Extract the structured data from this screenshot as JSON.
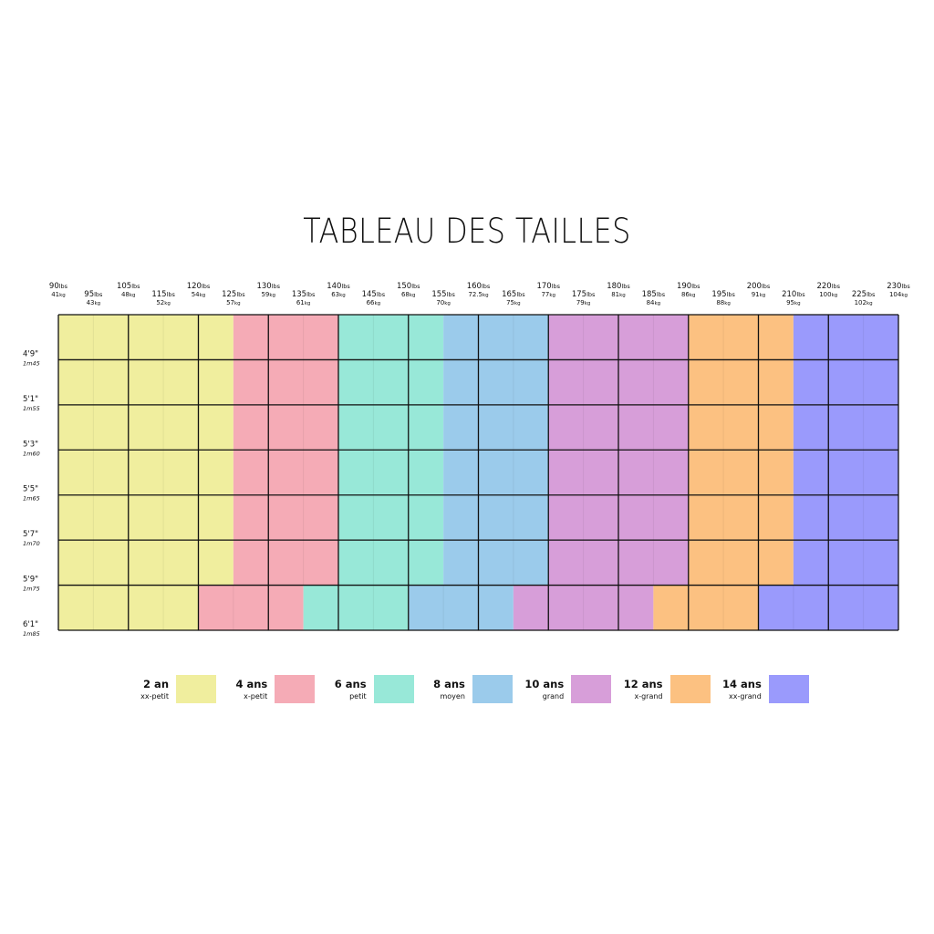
{
  "title": "TABLEAU DES TAILLES",
  "chart_data": {
    "type": "heatmap",
    "title": "TABLEAU DES TAILLES",
    "weights": [
      {
        "lbs": "90",
        "kg": "41"
      },
      {
        "lbs": "95",
        "kg": "43"
      },
      {
        "lbs": "105",
        "kg": "48"
      },
      {
        "lbs": "115",
        "kg": "52"
      },
      {
        "lbs": "120",
        "kg": "54"
      },
      {
        "lbs": "125",
        "kg": "57"
      },
      {
        "lbs": "130",
        "kg": "59"
      },
      {
        "lbs": "135",
        "kg": "61"
      },
      {
        "lbs": "140",
        "kg": "63"
      },
      {
        "lbs": "145",
        "kg": "66"
      },
      {
        "lbs": "150",
        "kg": "68"
      },
      {
        "lbs": "155",
        "kg": "70"
      },
      {
        "lbs": "160",
        "kg": "72.5"
      },
      {
        "lbs": "165",
        "kg": "75"
      },
      {
        "lbs": "170",
        "kg": "77"
      },
      {
        "lbs": "175",
        "kg": "79"
      },
      {
        "lbs": "180",
        "kg": "81"
      },
      {
        "lbs": "185",
        "kg": "84"
      },
      {
        "lbs": "190",
        "kg": "86"
      },
      {
        "lbs": "195",
        "kg": "88"
      },
      {
        "lbs": "200",
        "kg": "91"
      },
      {
        "lbs": "210",
        "kg": "95"
      },
      {
        "lbs": "220",
        "kg": "100"
      },
      {
        "lbs": "225",
        "kg": "102"
      },
      {
        "lbs": "230",
        "kg": "104"
      }
    ],
    "lbs_unit": "lbs",
    "kg_unit": "kg",
    "heights": [
      {
        "ft": "4'9\"",
        "m": "1m45"
      },
      {
        "ft": "5'1\"",
        "m": "1m55"
      },
      {
        "ft": "5'3\"",
        "m": "1m60"
      },
      {
        "ft": "5'5\"",
        "m": "1m65"
      },
      {
        "ft": "5'7\"",
        "m": "1m70"
      },
      {
        "ft": "5'9\"",
        "m": "1m75"
      },
      {
        "ft": "6'1\"",
        "m": "1m85"
      }
    ],
    "grid_columns": 12,
    "grid_rows": 7,
    "bands": [
      {
        "rows": [
          0,
          5
        ],
        "segments": [
          {
            "size": 0,
            "from": 0,
            "to": 5
          },
          {
            "size": 1,
            "from": 5,
            "to": 8
          },
          {
            "size": 2,
            "from": 8,
            "to": 11
          },
          {
            "size": 3,
            "from": 11,
            "to": 14
          },
          {
            "size": 4,
            "from": 14,
            "to": 18
          },
          {
            "size": 5,
            "from": 18,
            "to": 21
          },
          {
            "size": 6,
            "from": 21,
            "to": 24
          }
        ]
      },
      {
        "rows": [
          6,
          6
        ],
        "segments": [
          {
            "size": 0,
            "from": 0,
            "to": 4
          },
          {
            "size": 1,
            "from": 4,
            "to": 7
          },
          {
            "size": 2,
            "from": 7,
            "to": 10
          },
          {
            "size": 3,
            "from": 10,
            "to": 13
          },
          {
            "size": 4,
            "from": 13,
            "to": 17
          },
          {
            "size": 5,
            "from": 17,
            "to": 20
          },
          {
            "size": 6,
            "from": 20,
            "to": 24
          }
        ]
      }
    ],
    "sizes": [
      {
        "age": "2 an",
        "label": "xx-petit",
        "color": "#f0ee9e"
      },
      {
        "age": "4 ans",
        "label": "x-petit",
        "color": "#f5abb6"
      },
      {
        "age": "6 ans",
        "label": "petit",
        "color": "#98e8d8"
      },
      {
        "age": "8 ans",
        "label": "moyen",
        "color": "#9bcbeb"
      },
      {
        "age": "10 ans",
        "label": "grand",
        "color": "#d79ed9"
      },
      {
        "age": "12 ans",
        "label": "x-grand",
        "color": "#fcc181"
      },
      {
        "age": "14 ans",
        "label": "xx-grand",
        "color": "#9a9afc"
      }
    ]
  }
}
